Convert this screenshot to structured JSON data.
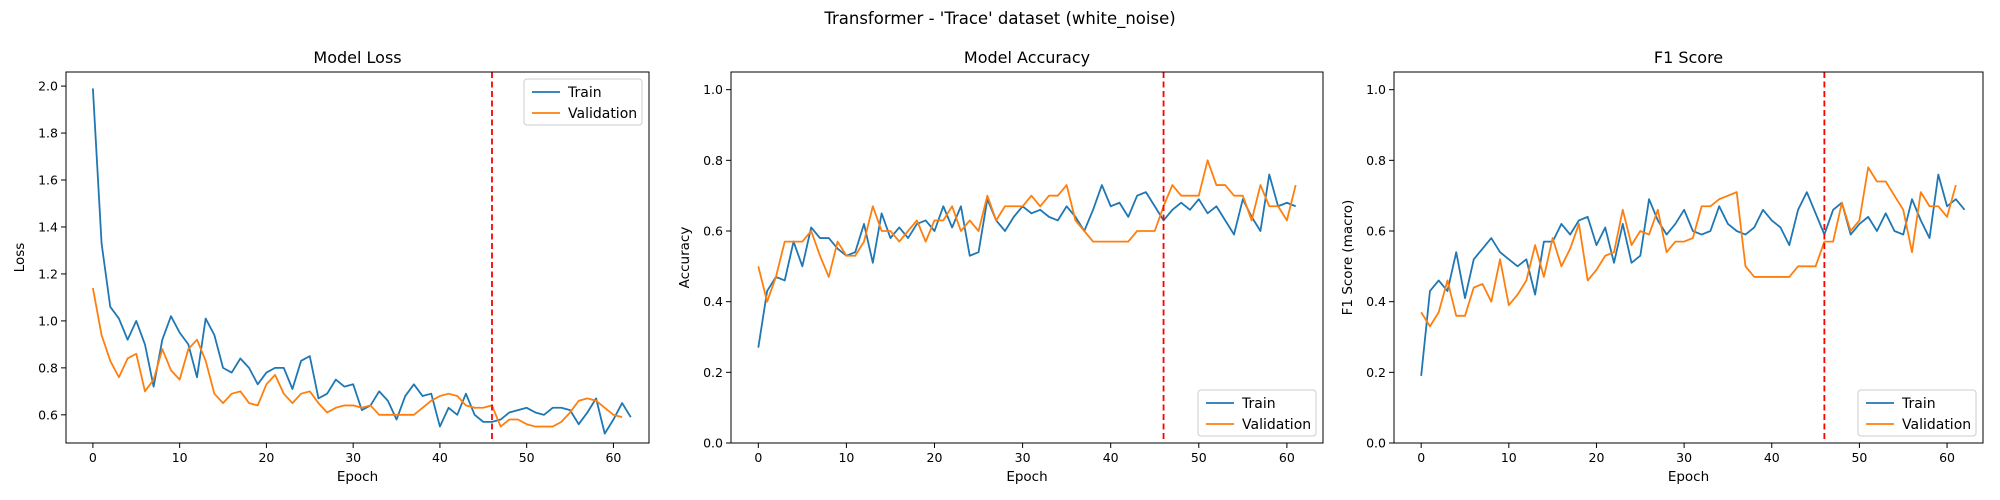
{
  "suptitle": "Transformer - 'Trace' dataset (white_noise)",
  "colors": {
    "train": "#1f77b4",
    "validation": "#ff7f0e",
    "marker": "#ff0000"
  },
  "chart_data": [
    {
      "type": "line",
      "title": "Model Loss",
      "xlabel": "Epoch",
      "ylabel": "Loss",
      "xlim": [
        -3.1,
        64.1
      ],
      "ylim": [
        0.48,
        2.06
      ],
      "xticks": [
        0,
        10,
        20,
        30,
        40,
        50,
        60
      ],
      "yticks": [
        0.6,
        0.8,
        1.0,
        1.2,
        1.4,
        1.6,
        1.8,
        2.0
      ],
      "ytick_labels": [
        "0.6",
        "0.8",
        "1.0",
        "1.2",
        "1.4",
        "1.6",
        "1.8",
        "2.0"
      ],
      "legend_position": "upper-right",
      "vline_x": 46,
      "series": [
        {
          "name": "Train",
          "values": [
            1.99,
            1.33,
            1.06,
            1.01,
            0.92,
            1.0,
            0.9,
            0.72,
            0.92,
            1.02,
            0.95,
            0.9,
            0.76,
            1.01,
            0.94,
            0.8,
            0.78,
            0.84,
            0.8,
            0.73,
            0.78,
            0.8,
            0.8,
            0.71,
            0.83,
            0.85,
            0.67,
            0.69,
            0.75,
            0.72,
            0.73,
            0.62,
            0.64,
            0.7,
            0.66,
            0.58,
            0.68,
            0.73,
            0.68,
            0.69,
            0.55,
            0.63,
            0.6,
            0.69,
            0.6,
            0.57,
            0.57,
            0.58,
            0.61,
            0.62,
            0.63,
            0.61,
            0.6,
            0.63,
            0.63,
            0.62,
            0.56,
            0.61,
            0.67,
            0.52,
            0.58,
            0.65,
            0.59
          ]
        },
        {
          "name": "Validation",
          "values": [
            1.14,
            0.94,
            0.83,
            0.76,
            0.84,
            0.86,
            0.7,
            0.75,
            0.88,
            0.79,
            0.75,
            0.88,
            0.92,
            0.83,
            0.69,
            0.65,
            0.69,
            0.7,
            0.65,
            0.64,
            0.73,
            0.77,
            0.69,
            0.65,
            0.69,
            0.7,
            0.65,
            0.61,
            0.63,
            0.64,
            0.64,
            0.63,
            0.64,
            0.6,
            0.6,
            0.6,
            0.6,
            0.6,
            0.63,
            0.66,
            0.68,
            0.69,
            0.68,
            0.64,
            0.63,
            0.63,
            0.64,
            0.55,
            0.58,
            0.58,
            0.56,
            0.55,
            0.55,
            0.55,
            0.57,
            0.61,
            0.66,
            0.67,
            0.66,
            0.63,
            0.6,
            0.59
          ]
        }
      ]
    },
    {
      "type": "line",
      "title": "Model Accuracy",
      "xlabel": "Epoch",
      "ylabel": "Accuracy",
      "xlim": [
        -3.1,
        64.1
      ],
      "ylim": [
        0.0,
        1.05
      ],
      "xticks": [
        0,
        10,
        20,
        30,
        40,
        50,
        60
      ],
      "yticks": [
        0.0,
        0.2,
        0.4,
        0.6,
        0.8,
        1.0
      ],
      "ytick_labels": [
        "0.0",
        "0.2",
        "0.4",
        "0.6",
        "0.8",
        "1.0"
      ],
      "legend_position": "lower-right",
      "vline_x": 46,
      "series": [
        {
          "name": "Train",
          "values": [
            0.27,
            0.43,
            0.47,
            0.46,
            0.57,
            0.5,
            0.61,
            0.58,
            0.58,
            0.55,
            0.53,
            0.54,
            0.62,
            0.51,
            0.65,
            0.58,
            0.61,
            0.58,
            0.62,
            0.63,
            0.6,
            0.67,
            0.61,
            0.67,
            0.53,
            0.54,
            0.69,
            0.63,
            0.6,
            0.64,
            0.67,
            0.65,
            0.66,
            0.64,
            0.63,
            0.67,
            0.64,
            0.6,
            0.66,
            0.73,
            0.67,
            0.68,
            0.64,
            0.7,
            0.71,
            0.67,
            0.63,
            0.66,
            0.68,
            0.66,
            0.69,
            0.65,
            0.67,
            0.63,
            0.59,
            0.69,
            0.64,
            0.6,
            0.76,
            0.67,
            0.68,
            0.67
          ]
        },
        {
          "name": "Validation",
          "values": [
            0.5,
            0.4,
            0.47,
            0.57,
            0.57,
            0.57,
            0.6,
            0.53,
            0.47,
            0.57,
            0.53,
            0.53,
            0.57,
            0.67,
            0.6,
            0.6,
            0.57,
            0.6,
            0.63,
            0.57,
            0.63,
            0.63,
            0.67,
            0.6,
            0.63,
            0.6,
            0.7,
            0.63,
            0.67,
            0.67,
            0.67,
            0.7,
            0.67,
            0.7,
            0.7,
            0.73,
            0.63,
            0.6,
            0.57,
            0.57,
            0.57,
            0.57,
            0.57,
            0.6,
            0.6,
            0.6,
            0.67,
            0.73,
            0.7,
            0.7,
            0.7,
            0.8,
            0.73,
            0.73,
            0.7,
            0.7,
            0.63,
            0.73,
            0.67,
            0.67,
            0.63,
            0.73
          ]
        }
      ]
    },
    {
      "type": "line",
      "title": "F1 Score",
      "xlabel": "Epoch",
      "ylabel": "F1 Score (macro)",
      "xlim": [
        -3.1,
        64.1
      ],
      "ylim": [
        0.0,
        1.05
      ],
      "xticks": [
        0,
        10,
        20,
        30,
        40,
        50,
        60
      ],
      "yticks": [
        0.0,
        0.2,
        0.4,
        0.6,
        0.8,
        1.0
      ],
      "ytick_labels": [
        "0.0",
        "0.2",
        "0.4",
        "0.6",
        "0.8",
        "1.0"
      ],
      "legend_position": "lower-right",
      "vline_x": 46,
      "series": [
        {
          "name": "Train",
          "values": [
            0.19,
            0.43,
            0.46,
            0.43,
            0.54,
            0.41,
            0.52,
            0.55,
            0.58,
            0.54,
            0.52,
            0.5,
            0.52,
            0.42,
            0.57,
            0.57,
            0.62,
            0.59,
            0.63,
            0.64,
            0.56,
            0.61,
            0.51,
            0.62,
            0.51,
            0.53,
            0.69,
            0.63,
            0.59,
            0.62,
            0.66,
            0.6,
            0.59,
            0.6,
            0.67,
            0.62,
            0.6,
            0.59,
            0.61,
            0.66,
            0.63,
            0.61,
            0.56,
            0.66,
            0.71,
            0.65,
            0.59,
            0.66,
            0.68,
            0.59,
            0.62,
            0.64,
            0.6,
            0.65,
            0.6,
            0.59,
            0.69,
            0.63,
            0.58,
            0.76,
            0.67,
            0.69,
            0.66
          ]
        },
        {
          "name": "Validation",
          "values": [
            0.37,
            0.33,
            0.37,
            0.46,
            0.36,
            0.36,
            0.44,
            0.45,
            0.4,
            0.52,
            0.39,
            0.42,
            0.46,
            0.56,
            0.47,
            0.58,
            0.5,
            0.55,
            0.62,
            0.46,
            0.49,
            0.53,
            0.54,
            0.66,
            0.56,
            0.6,
            0.59,
            0.66,
            0.54,
            0.57,
            0.57,
            0.58,
            0.67,
            0.67,
            0.69,
            0.7,
            0.71,
            0.5,
            0.47,
            0.47,
            0.47,
            0.47,
            0.47,
            0.5,
            0.5,
            0.5,
            0.57,
            0.57,
            0.68,
            0.6,
            0.63,
            0.78,
            0.74,
            0.74,
            0.7,
            0.66,
            0.54,
            0.71,
            0.67,
            0.67,
            0.64,
            0.73
          ]
        }
      ]
    }
  ]
}
